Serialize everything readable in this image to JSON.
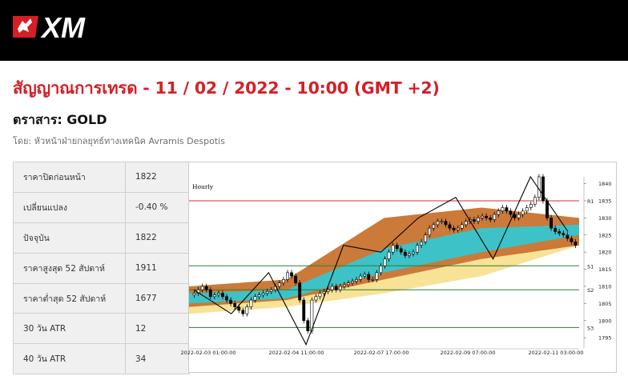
{
  "brand": {
    "logo_text": "XM"
  },
  "headline": "สัญญาณการเทรด - 11 / 02 / 2022 - 10:00 (GMT +2)",
  "instrument": "ตราสาร: GOLD",
  "byline": "โดย: หัวหน้าฝ่ายกลยุทธ์ทางเทคนิค Avramis Despotis",
  "stats": [
    {
      "label": "ราคาปิดก่อนหน้า",
      "value": "1822"
    },
    {
      "label": "เปลี่ยนแปลง",
      "value": "-0.40 %"
    },
    {
      "label": "ปัจจุบัน",
      "value": "1822"
    },
    {
      "label": "ราคาสูงสุด 52 สัปดาห์",
      "value": "1911"
    },
    {
      "label": "ราคาต่ำสุด 52 สัปดาห์",
      "value": "1677"
    },
    {
      "label": "30 วัน ATR",
      "value": "12"
    },
    {
      "label": "40 วัน ATR",
      "value": "34"
    }
  ],
  "chart_data": {
    "type": "candlestick",
    "timeframe": "Hourly",
    "ylim": [
      1792,
      1842
    ],
    "y_ticks": [
      1795,
      1800,
      1805,
      1810,
      1815,
      1820,
      1825,
      1830,
      1835,
      1840
    ],
    "x_tick_labels": [
      "2022-02-03 01:00:00",
      "2022-02-04 11:00:00",
      "2022-02-07 17:00:00",
      "2022-02-09 07:00:00",
      "2022-02-11 03:00:00"
    ],
    "levels": [
      {
        "name": "R1",
        "value": 1835,
        "color": "#c0392b"
      },
      {
        "name": "S1",
        "value": 1816,
        "color": "#2e7d32"
      },
      {
        "name": "S2",
        "value": 1809,
        "color": "#2e7d32"
      },
      {
        "name": "S3",
        "value": 1798,
        "color": "#2e7d32"
      }
    ],
    "zigzag": [
      1809,
      1802,
      1814,
      1793,
      1822,
      1820,
      1830,
      1836,
      1818,
      1842,
      1826
    ],
    "closes": [
      1808,
      1809,
      1810,
      1809,
      1807,
      1807.5,
      1808,
      1807,
      1806,
      1805,
      1804,
      1803,
      1802,
      1804,
      1806,
      1807,
      1807.5,
      1808,
      1808.5,
      1809,
      1810,
      1811,
      1812,
      1814,
      1813,
      1811,
      1806,
      1800,
      1797,
      1806,
      1807,
      1808,
      1808.5,
      1809,
      1810,
      1809,
      1810,
      1810.5,
      1811,
      1811.5,
      1812,
      1813,
      1813.5,
      1812,
      1812,
      1814,
      1816,
      1818,
      1820,
      1822,
      1821,
      1820,
      1819,
      1819.5,
      1820,
      1822,
      1823,
      1825,
      1827,
      1828,
      1829,
      1829,
      1828,
      1827,
      1826.5,
      1827,
      1828,
      1829,
      1829.5,
      1829,
      1830,
      1830.5,
      1830,
      1829.5,
      1831,
      1832,
      1833,
      1832,
      1831,
      1830,
      1831,
      1832,
      1833,
      1834,
      1836,
      1842,
      1835,
      1830,
      1827,
      1826,
      1825.5,
      1825,
      1824,
      1823,
      1822
    ],
    "bands": {
      "orange_upper": [
        1810,
        1812,
        1830,
        1833,
        1830
      ],
      "orange_lower": [
        1804,
        1806,
        1812,
        1818,
        1822
      ],
      "teal_upper": [
        1808,
        1809,
        1821,
        1827,
        1828
      ],
      "teal_lower": [
        1805,
        1806.5,
        1814,
        1820,
        1825
      ],
      "yellow_upper": [
        1805,
        1807,
        1812,
        1818,
        1824
      ],
      "yellow_lower": [
        1802,
        1804,
        1808,
        1813,
        1822
      ]
    },
    "colors": {
      "bull": "#ffffff",
      "bear": "#000000",
      "orange": "#c8732e",
      "orange_light": "#e7b57c",
      "teal": "#35c6cf",
      "yellow": "#f8e08f"
    }
  },
  "colors": {
    "brand_red": "#d51f26",
    "topbar": "#000000"
  }
}
